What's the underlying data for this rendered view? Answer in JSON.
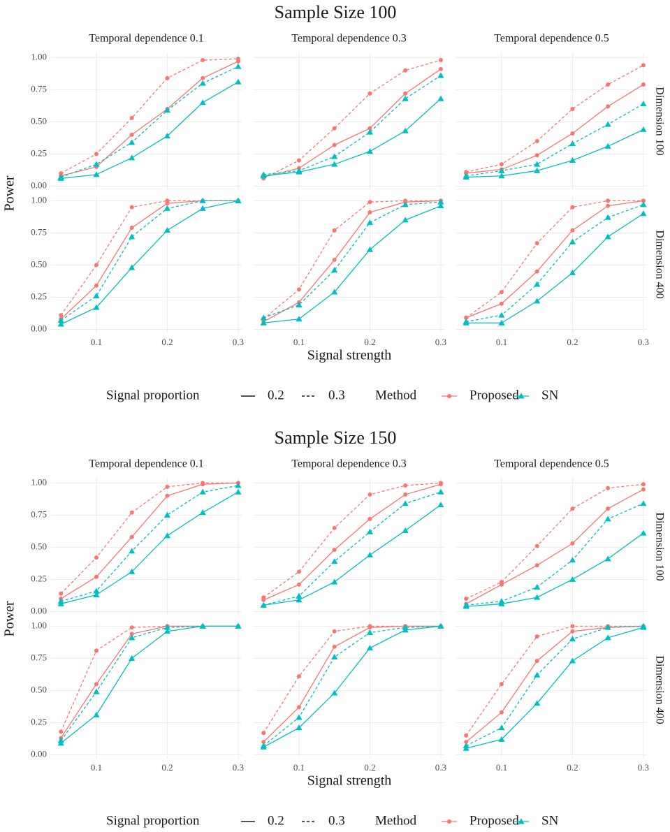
{
  "chart_data": [
    {
      "type": "line",
      "title": "Sample Size 100",
      "x_label": "Signal strength",
      "y_label": "Power",
      "columns": [
        "Temporal dependence 0.1",
        "Temporal dependence 0.3",
        "Temporal dependence 0.5"
      ],
      "rows": [
        "Dimension 100",
        "Dimension 400"
      ],
      "x": [
        0.05,
        0.1,
        0.15,
        0.2,
        0.25,
        0.3
      ],
      "xlim": [
        0.036,
        0.305
      ],
      "xticks": [
        0.1,
        0.2,
        0.3
      ],
      "ylim": [
        -0.03,
        1.04
      ],
      "yticks": [
        {
          "value": 0,
          "label": "0.00"
        },
        {
          "value": 0.25,
          "label": "0.25"
        },
        {
          "value": 0.5,
          "label": "0.50"
        },
        {
          "value": 0.75,
          "label": "0.75"
        },
        {
          "value": 1,
          "label": "1.00"
        }
      ],
      "grid": true,
      "legend": {
        "linetype_title": "Signal proportion",
        "linetypes": [
          {
            "label": "0.2",
            "dash": "none"
          },
          {
            "label": "0.3",
            "dash": "4,3"
          }
        ],
        "method_title": "Method",
        "methods": [
          {
            "name": "Proposed",
            "color": "#F8766D",
            "shape": "circle"
          },
          {
            "name": "SN",
            "color": "#00BFC4",
            "shape": "triangle"
          }
        ]
      },
      "panels": [
        {
          "series": [
            {
              "method": "Proposed",
              "proportion": "0.2",
              "values": [
                0.08,
                0.15,
                0.4,
                0.6,
                0.84,
                0.97
              ]
            },
            {
              "method": "Proposed",
              "proportion": "0.3",
              "values": [
                0.1,
                0.25,
                0.53,
                0.84,
                0.98,
                0.99
              ]
            },
            {
              "method": "SN",
              "proportion": "0.2",
              "values": [
                0.06,
                0.09,
                0.22,
                0.39,
                0.65,
                0.81
              ]
            },
            {
              "method": "SN",
              "proportion": "0.3",
              "values": [
                0.07,
                0.17,
                0.34,
                0.59,
                0.8,
                0.93
              ]
            }
          ]
        },
        {
          "series": [
            {
              "method": "Proposed",
              "proportion": "0.2",
              "values": [
                0.07,
                0.14,
                0.32,
                0.45,
                0.72,
                0.91
              ]
            },
            {
              "method": "Proposed",
              "proportion": "0.3",
              "values": [
                0.06,
                0.2,
                0.45,
                0.72,
                0.9,
                0.98
              ]
            },
            {
              "method": "SN",
              "proportion": "0.2",
              "values": [
                0.08,
                0.11,
                0.17,
                0.27,
                0.43,
                0.68
              ]
            },
            {
              "method": "SN",
              "proportion": "0.3",
              "values": [
                0.09,
                0.12,
                0.23,
                0.42,
                0.68,
                0.86
              ]
            }
          ]
        },
        {
          "series": [
            {
              "method": "Proposed",
              "proportion": "0.2",
              "values": [
                0.1,
                0.13,
                0.24,
                0.41,
                0.62,
                0.79
              ]
            },
            {
              "method": "Proposed",
              "proportion": "0.3",
              "values": [
                0.11,
                0.17,
                0.35,
                0.6,
                0.79,
                0.94
              ]
            },
            {
              "method": "SN",
              "proportion": "0.2",
              "values": [
                0.07,
                0.08,
                0.12,
                0.2,
                0.31,
                0.44
              ]
            },
            {
              "method": "SN",
              "proportion": "0.3",
              "values": [
                0.08,
                0.12,
                0.17,
                0.33,
                0.48,
                0.64
              ]
            }
          ]
        },
        {
          "series": [
            {
              "method": "Proposed",
              "proportion": "0.2",
              "values": [
                0.08,
                0.34,
                0.79,
                0.98,
                1.0,
                1.0
              ]
            },
            {
              "method": "Proposed",
              "proportion": "0.3",
              "values": [
                0.11,
                0.5,
                0.95,
                1.0,
                1.0,
                1.0
              ]
            },
            {
              "method": "SN",
              "proportion": "0.2",
              "values": [
                0.04,
                0.17,
                0.48,
                0.77,
                0.94,
                1.0
              ]
            },
            {
              "method": "SN",
              "proportion": "0.3",
              "values": [
                0.07,
                0.26,
                0.72,
                0.94,
                1.0,
                1.0
              ]
            }
          ]
        },
        {
          "series": [
            {
              "method": "Proposed",
              "proportion": "0.2",
              "values": [
                0.06,
                0.21,
                0.54,
                0.91,
                0.99,
                1.0
              ]
            },
            {
              "method": "Proposed",
              "proportion": "0.3",
              "values": [
                0.08,
                0.31,
                0.77,
                0.99,
                1.0,
                1.0
              ]
            },
            {
              "method": "SN",
              "proportion": "0.2",
              "values": [
                0.05,
                0.08,
                0.29,
                0.62,
                0.85,
                0.96
              ]
            },
            {
              "method": "SN",
              "proportion": "0.3",
              "values": [
                0.09,
                0.19,
                0.46,
                0.83,
                0.97,
                0.99
              ]
            }
          ]
        },
        {
          "series": [
            {
              "method": "Proposed",
              "proportion": "0.2",
              "values": [
                0.09,
                0.2,
                0.45,
                0.77,
                0.96,
                1.0
              ]
            },
            {
              "method": "Proposed",
              "proportion": "0.3",
              "values": [
                0.09,
                0.29,
                0.67,
                0.95,
                1.0,
                1.0
              ]
            },
            {
              "method": "SN",
              "proportion": "0.2",
              "values": [
                0.05,
                0.05,
                0.22,
                0.44,
                0.72,
                0.9
              ]
            },
            {
              "method": "SN",
              "proportion": "0.3",
              "values": [
                0.06,
                0.11,
                0.35,
                0.68,
                0.87,
                0.97
              ]
            }
          ]
        }
      ]
    },
    {
      "type": "line",
      "title": "Sample Size 150",
      "x_label": "Signal strength",
      "y_label": "Power",
      "columns": [
        "Temporal dependence 0.1",
        "Temporal dependence 0.3",
        "Temporal dependence 0.5"
      ],
      "rows": [
        "Dimension 100",
        "Dimension 400"
      ],
      "x": [
        0.05,
        0.1,
        0.15,
        0.2,
        0.25,
        0.3
      ],
      "xlim": [
        0.036,
        0.305
      ],
      "xticks": [
        0.1,
        0.2,
        0.3
      ],
      "ylim": [
        -0.03,
        1.04
      ],
      "yticks": [
        {
          "value": 0,
          "label": "0.00"
        },
        {
          "value": 0.25,
          "label": "0.25"
        },
        {
          "value": 0.5,
          "label": "0.50"
        },
        {
          "value": 0.75,
          "label": "0.75"
        },
        {
          "value": 1,
          "label": "1.00"
        }
      ],
      "grid": true,
      "legend": {
        "linetype_title": "Signal proportion",
        "linetypes": [
          {
            "label": "0.2",
            "dash": "none"
          },
          {
            "label": "0.3",
            "dash": "4,3"
          }
        ],
        "method_title": "Method",
        "methods": [
          {
            "name": "Proposed",
            "color": "#F8766D",
            "shape": "circle"
          },
          {
            "name": "SN",
            "color": "#00BFC4",
            "shape": "triangle"
          }
        ]
      },
      "panels": [
        {
          "series": [
            {
              "method": "Proposed",
              "proportion": "0.2",
              "values": [
                0.1,
                0.27,
                0.58,
                0.9,
                0.99,
                1.0
              ]
            },
            {
              "method": "Proposed",
              "proportion": "0.3",
              "values": [
                0.14,
                0.42,
                0.77,
                0.97,
                1.0,
                1.0
              ]
            },
            {
              "method": "SN",
              "proportion": "0.2",
              "values": [
                0.06,
                0.13,
                0.31,
                0.59,
                0.77,
                0.93
              ]
            },
            {
              "method": "SN",
              "proportion": "0.3",
              "values": [
                0.08,
                0.16,
                0.47,
                0.75,
                0.93,
                0.98
              ]
            }
          ]
        },
        {
          "series": [
            {
              "method": "Proposed",
              "proportion": "0.2",
              "values": [
                0.09,
                0.21,
                0.48,
                0.72,
                0.91,
                0.99
              ]
            },
            {
              "method": "Proposed",
              "proportion": "0.3",
              "values": [
                0.11,
                0.31,
                0.65,
                0.91,
                0.98,
                1.0
              ]
            },
            {
              "method": "SN",
              "proportion": "0.2",
              "values": [
                0.05,
                0.09,
                0.23,
                0.44,
                0.63,
                0.83
              ]
            },
            {
              "method": "SN",
              "proportion": "0.3",
              "values": [
                0.05,
                0.12,
                0.39,
                0.62,
                0.84,
                0.93
              ]
            }
          ]
        },
        {
          "series": [
            {
              "method": "Proposed",
              "proportion": "0.2",
              "values": [
                0.06,
                0.21,
                0.36,
                0.53,
                0.8,
                0.95
              ]
            },
            {
              "method": "Proposed",
              "proportion": "0.3",
              "values": [
                0.1,
                0.23,
                0.51,
                0.8,
                0.96,
                0.99
              ]
            },
            {
              "method": "SN",
              "proportion": "0.2",
              "values": [
                0.04,
                0.06,
                0.11,
                0.25,
                0.41,
                0.61
              ]
            },
            {
              "method": "SN",
              "proportion": "0.3",
              "values": [
                0.05,
                0.08,
                0.19,
                0.4,
                0.72,
                0.84
              ]
            }
          ]
        },
        {
          "series": [
            {
              "method": "Proposed",
              "proportion": "0.2",
              "values": [
                0.13,
                0.55,
                0.94,
                1.0,
                1.0,
                1.0
              ]
            },
            {
              "method": "Proposed",
              "proportion": "0.3",
              "values": [
                0.18,
                0.81,
                0.99,
                1.0,
                1.0,
                1.0
              ]
            },
            {
              "method": "SN",
              "proportion": "0.2",
              "values": [
                0.09,
                0.31,
                0.75,
                0.96,
                1.0,
                1.0
              ]
            },
            {
              "method": "SN",
              "proportion": "0.3",
              "values": [
                0.11,
                0.49,
                0.91,
                0.99,
                1.0,
                1.0
              ]
            }
          ]
        },
        {
          "series": [
            {
              "method": "Proposed",
              "proportion": "0.2",
              "values": [
                0.1,
                0.37,
                0.84,
                0.99,
                1.0,
                1.0
              ]
            },
            {
              "method": "Proposed",
              "proportion": "0.3",
              "values": [
                0.17,
                0.61,
                0.96,
                1.0,
                1.0,
                1.0
              ]
            },
            {
              "method": "SN",
              "proportion": "0.2",
              "values": [
                0.06,
                0.21,
                0.48,
                0.83,
                0.97,
                1.0
              ]
            },
            {
              "method": "SN",
              "proportion": "0.3",
              "values": [
                0.07,
                0.29,
                0.76,
                0.95,
                0.99,
                1.0
              ]
            }
          ]
        },
        {
          "series": [
            {
              "method": "Proposed",
              "proportion": "0.2",
              "values": [
                0.1,
                0.33,
                0.73,
                0.96,
                0.99,
                1.0
              ]
            },
            {
              "method": "Proposed",
              "proportion": "0.3",
              "values": [
                0.15,
                0.55,
                0.92,
                1.0,
                1.0,
                1.0
              ]
            },
            {
              "method": "SN",
              "proportion": "0.2",
              "values": [
                0.05,
                0.12,
                0.4,
                0.73,
                0.91,
                0.99
              ]
            },
            {
              "method": "SN",
              "proportion": "0.3",
              "values": [
                0.07,
                0.21,
                0.62,
                0.9,
                0.99,
                1.0
              ]
            }
          ]
        }
      ]
    }
  ]
}
